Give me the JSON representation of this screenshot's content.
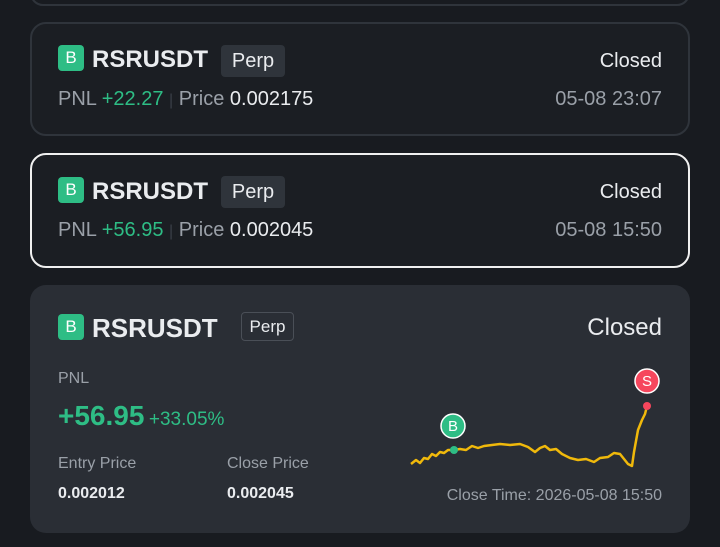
{
  "cards": [
    {
      "badge": "B",
      "symbol": "RSRUSDT",
      "tag": "Perp",
      "status": "Closed",
      "pnl_label": "PNL",
      "pnl": "+22.27",
      "price_label": "Price",
      "price": "0.002175",
      "time": "05-08 23:07"
    },
    {
      "badge": "B",
      "symbol": "RSRUSDT",
      "tag": "Perp",
      "status": "Closed",
      "pnl_label": "PNL",
      "pnl": "+56.95",
      "price_label": "Price",
      "price": "0.002045",
      "time": "05-08 15:50"
    }
  ],
  "detail": {
    "badge": "B",
    "symbol": "RSRUSDT",
    "tag": "Perp",
    "status": "Closed",
    "pnl_label": "PNL",
    "pnl": "+56.95",
    "pnl_percent": "+33.05%",
    "entry_label": "Entry Price",
    "entry": "0.002012",
    "close_label": "Close Price",
    "close": "0.002045",
    "close_time": "Close Time: 2026-05-08 15:50",
    "buy_marker": "B",
    "sell_marker": "S"
  }
}
